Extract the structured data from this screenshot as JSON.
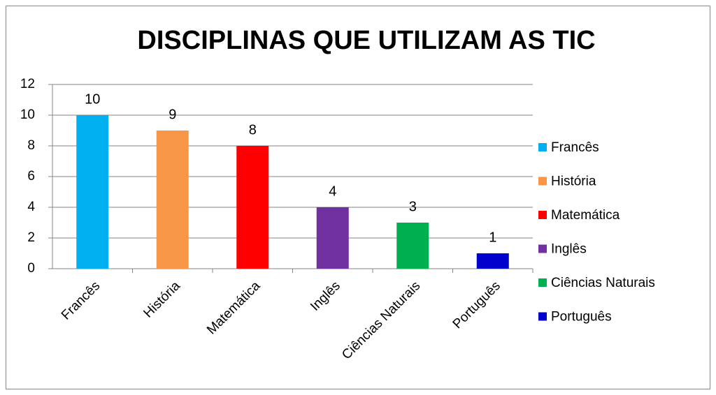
{
  "chart_data": {
    "type": "bar",
    "title": "DISCIPLINAS QUE UTILIZAM AS TIC",
    "categories": [
      "Francês",
      "História",
      "Matemática",
      "Inglês",
      "Ciências Naturais",
      "Português"
    ],
    "values": [
      10,
      9,
      8,
      4,
      3,
      1
    ],
    "colors": [
      "#00b0f0",
      "#f79646",
      "#ff0000",
      "#7030a0",
      "#00b050",
      "#0000cc"
    ],
    "ylim": [
      0,
      12
    ],
    "yticks": [
      0,
      2,
      4,
      6,
      8,
      10,
      12
    ],
    "grid": true,
    "legend": "right"
  }
}
